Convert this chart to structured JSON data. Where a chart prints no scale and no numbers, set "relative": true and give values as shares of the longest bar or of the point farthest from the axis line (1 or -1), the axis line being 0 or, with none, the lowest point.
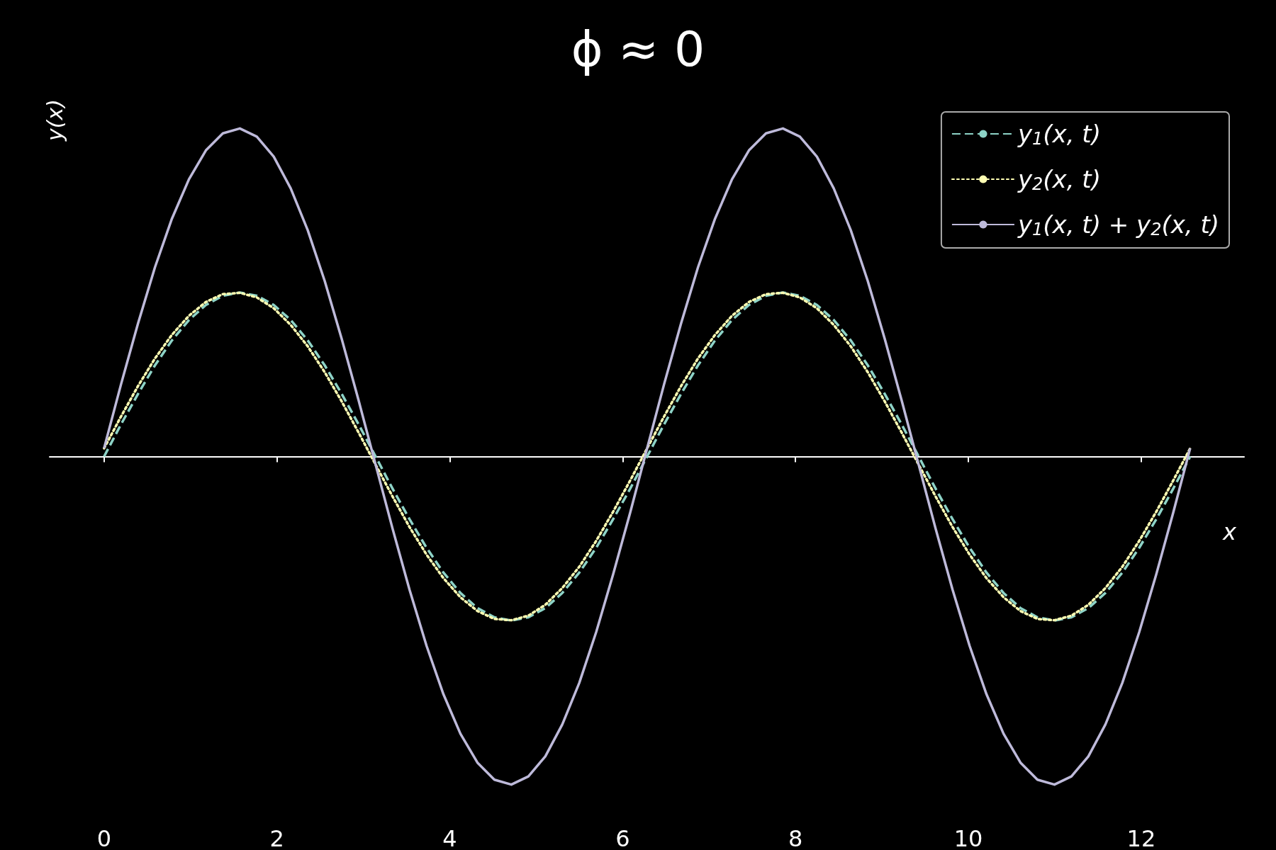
{
  "chart_data": {
    "type": "line",
    "title": "ϕ ≈ 0",
    "xlabel": "x",
    "ylabel": "y(x)",
    "relative": true,
    "legend": "top right",
    "grid": false,
    "xlim": [
      -0.63,
      13.19
    ],
    "xticks": [
      0,
      2,
      4,
      6,
      8,
      10,
      12
    ],
    "x": [
      0,
      0.196,
      0.393,
      0.589,
      0.785,
      0.982,
      1.178,
      1.374,
      1.571,
      1.767,
      1.963,
      2.16,
      2.356,
      2.553,
      2.749,
      2.945,
      3.142,
      3.338,
      3.534,
      3.731,
      3.927,
      4.123,
      4.32,
      4.516,
      4.712,
      4.909,
      5.105,
      5.301,
      5.498,
      5.694,
      5.89,
      6.087,
      6.283,
      6.479,
      6.676,
      6.872,
      7.069,
      7.265,
      7.461,
      7.658,
      7.854,
      8.05,
      8.247,
      8.443,
      8.639,
      8.836,
      9.032,
      9.228,
      9.425,
      9.621,
      9.817,
      10.014,
      10.21,
      10.407,
      10.603,
      10.799,
      10.996,
      11.192,
      11.388,
      11.585,
      11.781,
      11.977,
      12.174,
      12.37,
      12.566
    ],
    "series": [
      {
        "name": "y$_{1}$(x, t)",
        "color": "#8dd3c7",
        "line_style": "dashed",
        "values": [
          0,
          0.098,
          0.191,
          0.278,
          0.354,
          0.416,
          0.462,
          0.49,
          0.5,
          0.49,
          0.462,
          0.416,
          0.354,
          0.278,
          0.191,
          0.098,
          0,
          -0.098,
          -0.191,
          -0.278,
          -0.354,
          -0.416,
          -0.462,
          -0.49,
          -0.5,
          -0.49,
          -0.462,
          -0.416,
          -0.354,
          -0.278,
          -0.191,
          -0.098,
          0,
          0.098,
          0.191,
          0.278,
          0.354,
          0.416,
          0.462,
          0.49,
          0.5,
          0.49,
          0.462,
          0.416,
          0.354,
          0.278,
          0.191,
          0.098,
          0,
          -0.098,
          -0.191,
          -0.278,
          -0.354,
          -0.416,
          -0.462,
          -0.49,
          -0.5,
          -0.49,
          -0.462,
          -0.416,
          -0.354,
          -0.278,
          -0.191,
          -0.098,
          0
        ]
      },
      {
        "name": "y$_{2}$(x, t)",
        "color": "#ffffb3",
        "line_style": "dotted",
        "values": [
          0.025,
          0.122,
          0.215,
          0.299,
          0.371,
          0.429,
          0.471,
          0.495,
          0.499,
          0.485,
          0.452,
          0.401,
          0.336,
          0.257,
          0.168,
          0.073,
          -0.025,
          -0.122,
          -0.215,
          -0.299,
          -0.371,
          -0.429,
          -0.471,
          -0.495,
          -0.499,
          -0.485,
          -0.452,
          -0.401,
          -0.336,
          -0.257,
          -0.168,
          -0.073,
          0.025,
          0.122,
          0.215,
          0.299,
          0.371,
          0.429,
          0.471,
          0.495,
          0.499,
          0.485,
          0.452,
          0.401,
          0.336,
          0.257,
          0.168,
          0.073,
          -0.025,
          -0.122,
          -0.215,
          -0.299,
          -0.371,
          -0.429,
          -0.471,
          -0.495,
          -0.499,
          -0.485,
          -0.452,
          -0.401,
          -0.336,
          -0.257,
          -0.168,
          -0.073,
          0.025
        ]
      },
      {
        "name": "y$_{1}$(x, t) + y$_{2}$(x, t)",
        "color": "#bebada",
        "line_style": "solid",
        "values": [
          0.025,
          0.22,
          0.406,
          0.577,
          0.725,
          0.845,
          0.933,
          0.985,
          1,
          0.975,
          0.914,
          0.817,
          0.69,
          0.535,
          0.359,
          0.171,
          -0.025,
          -0.22,
          -0.406,
          -0.577,
          -0.725,
          -0.845,
          -0.933,
          -0.985,
          -1,
          -0.975,
          -0.914,
          -0.817,
          -0.69,
          -0.535,
          -0.359,
          -0.171,
          0.025,
          0.22,
          0.406,
          0.577,
          0.725,
          0.845,
          0.933,
          0.985,
          1,
          0.975,
          0.914,
          0.817,
          0.69,
          0.535,
          0.359,
          0.171,
          -0.025,
          -0.22,
          -0.406,
          -0.577,
          -0.725,
          -0.845,
          -0.933,
          -0.985,
          -1,
          -0.975,
          -0.914,
          -0.817,
          -0.69,
          -0.535,
          -0.359,
          -0.171,
          0.025
        ]
      }
    ]
  }
}
